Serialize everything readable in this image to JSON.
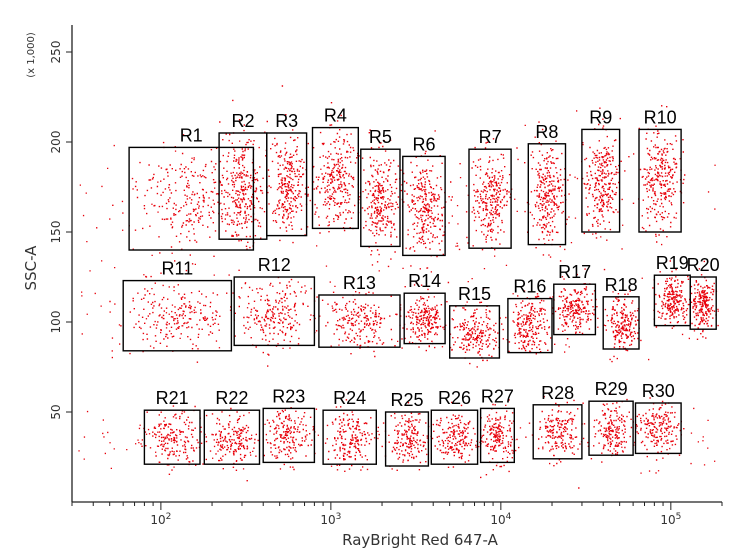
{
  "chart_data": {
    "type": "scatter",
    "title": "",
    "xlabel": "RayBright Red 647-A",
    "ylabel": "SSC-A",
    "y_multiplier_label": "(x 1,000)",
    "x_scale": "log",
    "x_ticks": [
      {
        "value": 100,
        "base": "10",
        "exp": "2"
      },
      {
        "value": 1000,
        "base": "10",
        "exp": "3"
      },
      {
        "value": 10000,
        "base": "10",
        "exp": "4"
      },
      {
        "value": 100000,
        "base": "10",
        "exp": "5"
      }
    ],
    "xlim": [
      30,
      200000
    ],
    "y_ticks": [
      50,
      100,
      150,
      200,
      250
    ],
    "ylim": [
      0,
      265
    ],
    "grid": false,
    "point_color": "#e8000a",
    "regions": [
      {
        "name": "R1",
        "x": [
          65,
          350
        ],
        "y": [
          140,
          197
        ],
        "label_side": "top"
      },
      {
        "name": "R2",
        "x": [
          220,
          420
        ],
        "y": [
          146,
          205
        ],
        "label_side": "top"
      },
      {
        "name": "R3",
        "x": [
          420,
          720
        ],
        "y": [
          148,
          205
        ],
        "label_side": "top"
      },
      {
        "name": "R4",
        "x": [
          780,
          1450
        ],
        "y": [
          152,
          208
        ],
        "label_side": "top"
      },
      {
        "name": "R5",
        "x": [
          1500,
          2550
        ],
        "y": [
          142,
          196
        ],
        "label_side": "top"
      },
      {
        "name": "R6",
        "x": [
          2650,
          4700
        ],
        "y": [
          137,
          192
        ],
        "label_side": "top"
      },
      {
        "name": "R7",
        "x": [
          6500,
          11500
        ],
        "y": [
          141,
          196
        ],
        "label_side": "top"
      },
      {
        "name": "R8",
        "x": [
          14500,
          24000
        ],
        "y": [
          143,
          199
        ],
        "label_side": "top"
      },
      {
        "name": "R9",
        "x": [
          30000,
          50000
        ],
        "y": [
          150,
          207
        ],
        "label_side": "top"
      },
      {
        "name": "R10",
        "x": [
          65000,
          115000
        ],
        "y": [
          150,
          207
        ],
        "label_side": "top"
      },
      {
        "name": "R11",
        "x": [
          60,
          260
        ],
        "y": [
          84,
          123
        ],
        "label_side": "top"
      },
      {
        "name": "R12",
        "x": [
          270,
          800
        ],
        "y": [
          87,
          125
        ],
        "label_side": "top"
      },
      {
        "name": "R13",
        "x": [
          850,
          2550
        ],
        "y": [
          86,
          115
        ],
        "label_side": "top"
      },
      {
        "name": "R14",
        "x": [
          2700,
          4700
        ],
        "y": [
          88,
          116
        ],
        "label_side": "top"
      },
      {
        "name": "R15",
        "x": [
          5000,
          9800
        ],
        "y": [
          80,
          109
        ],
        "label_side": "top"
      },
      {
        "name": "R16",
        "x": [
          11000,
          20000
        ],
        "y": [
          83,
          113
        ],
        "label_side": "top"
      },
      {
        "name": "R17",
        "x": [
          20500,
          36000
        ],
        "y": [
          93,
          121
        ],
        "label_side": "top"
      },
      {
        "name": "R18",
        "x": [
          40000,
          65000
        ],
        "y": [
          85,
          114
        ],
        "label_side": "top"
      },
      {
        "name": "R19",
        "x": [
          80000,
          130000
        ],
        "y": [
          98,
          126
        ],
        "label_side": "top"
      },
      {
        "name": "R20",
        "x": [
          130000,
          185000
        ],
        "y": [
          96,
          125
        ],
        "label_side": "top"
      },
      {
        "name": "R21",
        "x": [
          80,
          170
        ],
        "y": [
          21,
          51
        ],
        "label_side": "top"
      },
      {
        "name": "R22",
        "x": [
          180,
          380
        ],
        "y": [
          21,
          51
        ],
        "label_side": "top"
      },
      {
        "name": "R23",
        "x": [
          400,
          800
        ],
        "y": [
          22,
          52
        ],
        "label_side": "top"
      },
      {
        "name": "R24",
        "x": [
          900,
          1850
        ],
        "y": [
          21,
          51
        ],
        "label_side": "top"
      },
      {
        "name": "R25",
        "x": [
          2100,
          3750
        ],
        "y": [
          20,
          50
        ],
        "label_side": "top"
      },
      {
        "name": "R26",
        "x": [
          3900,
          7300
        ],
        "y": [
          21,
          51
        ],
        "label_side": "top"
      },
      {
        "name": "R27",
        "x": [
          7600,
          12000
        ],
        "y": [
          22,
          52
        ],
        "label_side": "top"
      },
      {
        "name": "R28",
        "x": [
          15500,
          30000
        ],
        "y": [
          24,
          54
        ],
        "label_side": "top"
      },
      {
        "name": "R29",
        "x": [
          33000,
          60000
        ],
        "y": [
          26,
          56
        ],
        "label_side": "top"
      },
      {
        "name": "R30",
        "x": [
          62000,
          115000
        ],
        "y": [
          27,
          55
        ],
        "label_side": "top"
      }
    ]
  }
}
